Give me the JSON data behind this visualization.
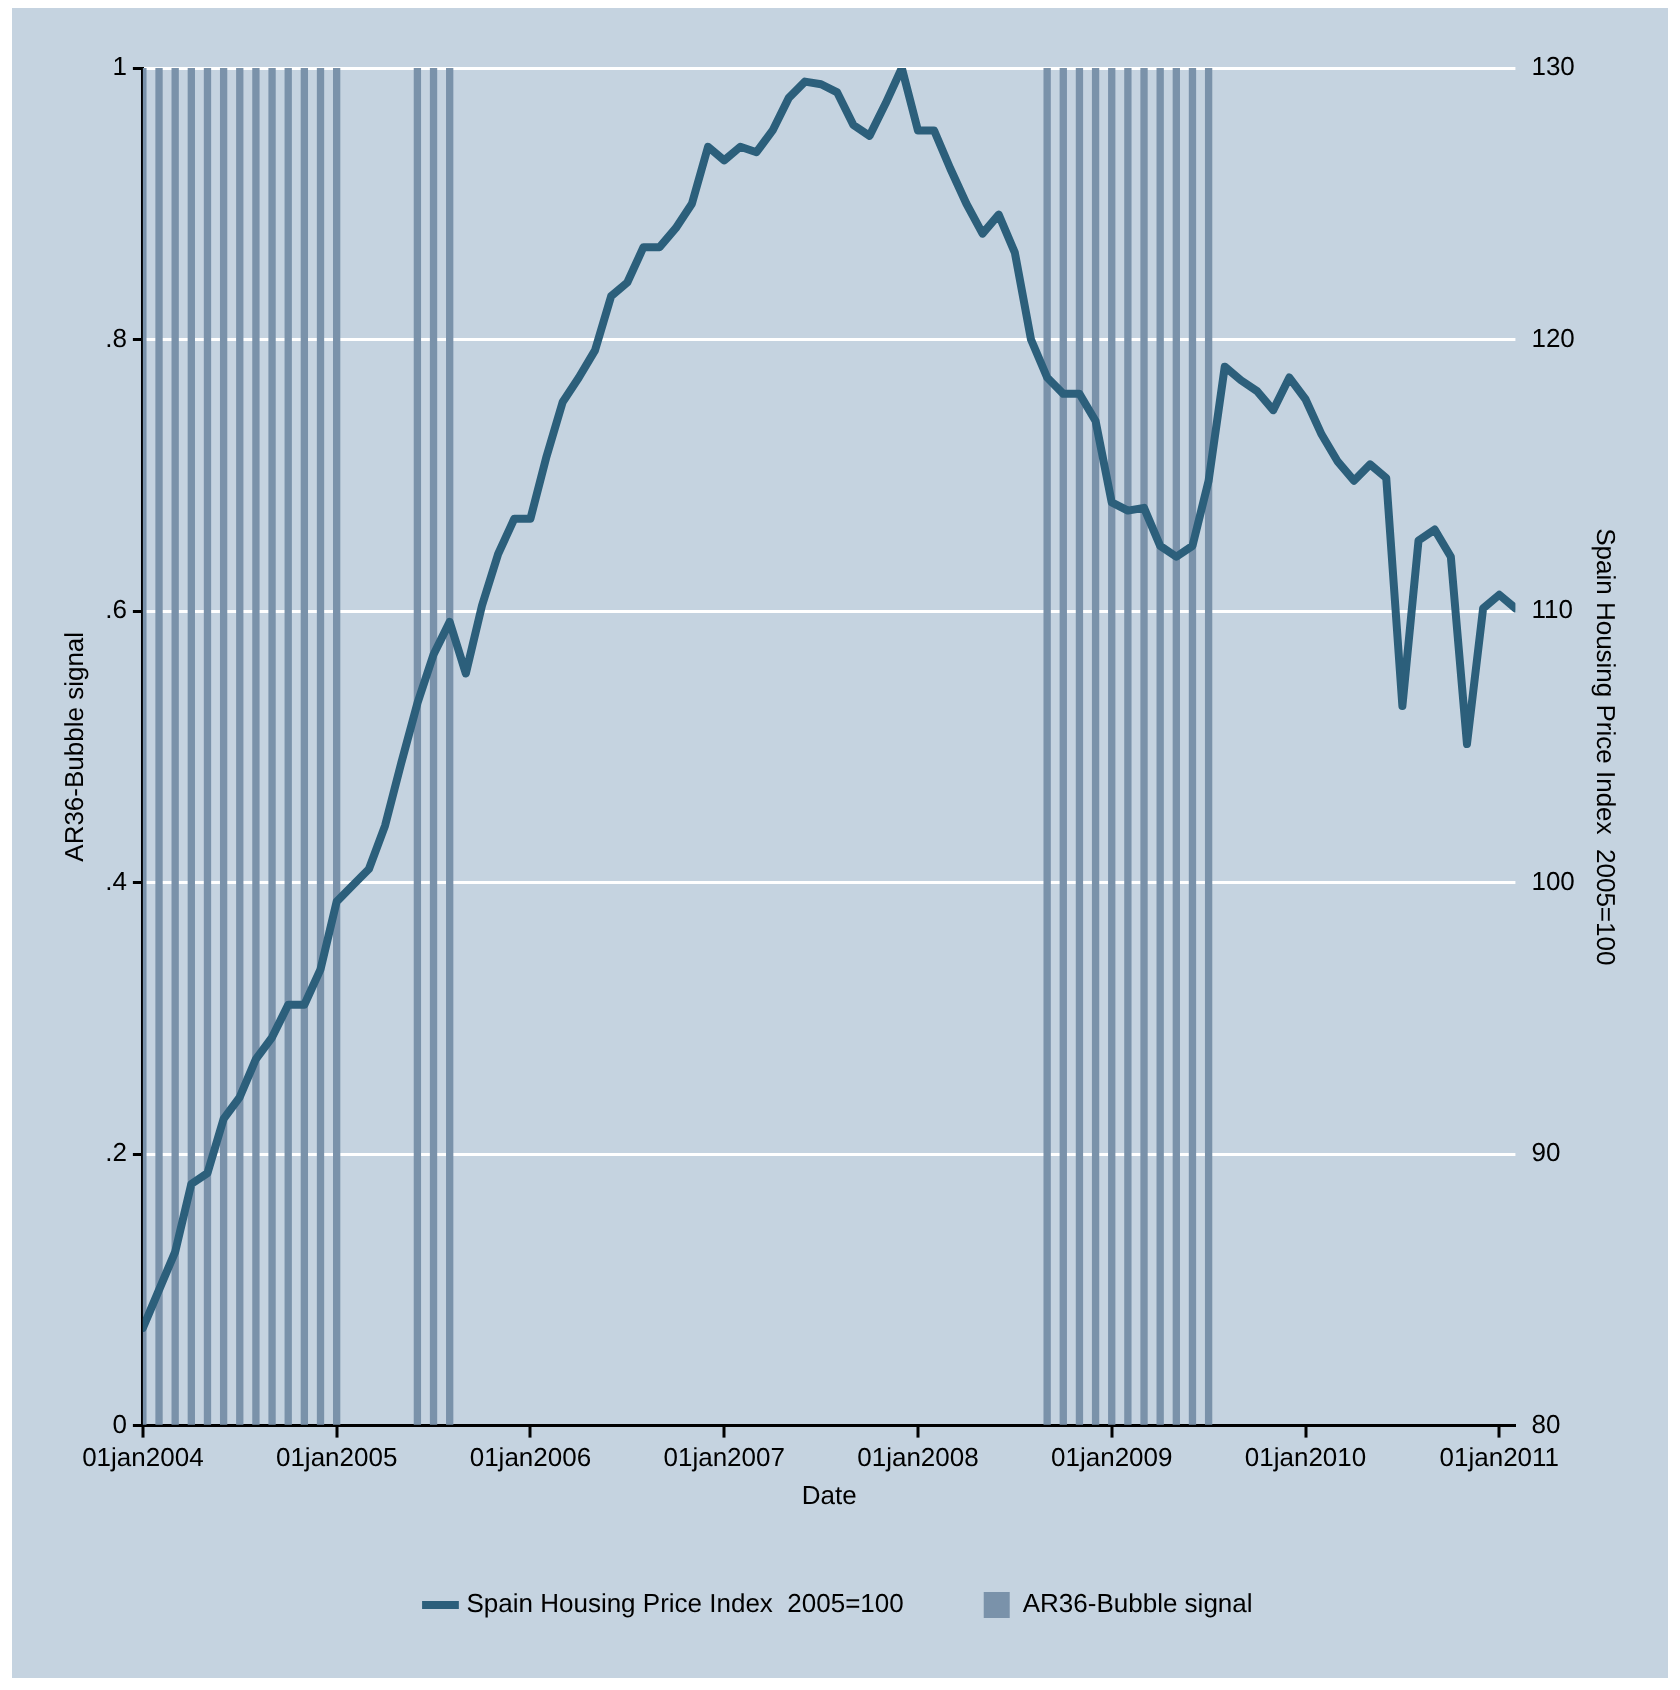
{
  "chart_data": {
    "type": "line",
    "xlabel": "Date",
    "ylabel": "AR36-Bubble signal",
    "y2label": "Spain Housing Price Index  2005=100",
    "xlim": [
      "2004-01",
      "2011-02"
    ],
    "xticks": [
      {
        "value": "2004-01",
        "label": "01jan2004"
      },
      {
        "value": "2005-01",
        "label": "01jan2005"
      },
      {
        "value": "2006-01",
        "label": "01jan2006"
      },
      {
        "value": "2007-01",
        "label": "01jan2007"
      },
      {
        "value": "2008-01",
        "label": "01jan2008"
      },
      {
        "value": "2009-01",
        "label": "01jan2009"
      },
      {
        "value": "2010-01",
        "label": "01jan2010"
      },
      {
        "value": "2011-01",
        "label": "01jan2011"
      }
    ],
    "ylim": [
      0,
      1
    ],
    "yticks": [
      0,
      {
        "value": 0.2,
        "label": ".2"
      },
      {
        "value": 0.4,
        "label": ".4"
      },
      {
        "value": 0.6,
        "label": ".6"
      },
      {
        "value": 0.8,
        "label": ".8"
      },
      1
    ],
    "y2lim": [
      80,
      130
    ],
    "y2ticks": [
      80,
      90,
      100,
      110,
      120,
      130
    ],
    "grid": "y",
    "legend": "bottom",
    "marker": "none",
    "line_style": "solid",
    "series": [
      {
        "name": "Spain Housing Price Index  2005=100",
        "axis": "y2",
        "color": "#2c5f7b",
        "x": [
          "2004-01",
          "2004-02",
          "2004-03",
          "2004-04",
          "2004-05",
          "2004-06",
          "2004-07",
          "2004-08",
          "2004-09",
          "2004-10",
          "2004-11",
          "2004-12",
          "2005-01",
          "2005-02",
          "2005-03",
          "2005-04",
          "2005-05",
          "2005-06",
          "2005-07",
          "2005-08",
          "2005-09",
          "2005-10",
          "2005-11",
          "2005-12",
          "2006-01",
          "2006-02",
          "2006-03",
          "2006-04",
          "2006-05",
          "2006-06",
          "2006-07",
          "2006-08",
          "2006-09",
          "2006-10",
          "2006-11",
          "2006-12",
          "2007-01",
          "2007-02",
          "2007-03",
          "2007-04",
          "2007-05",
          "2007-06",
          "2007-07",
          "2007-08",
          "2007-09",
          "2007-10",
          "2007-11",
          "2007-12",
          "2008-01",
          "2008-02",
          "2008-03",
          "2008-04",
          "2008-05",
          "2008-06",
          "2008-07",
          "2008-08",
          "2008-09",
          "2008-10",
          "2008-11",
          "2008-12",
          "2009-01",
          "2009-02",
          "2009-03",
          "2009-04",
          "2009-05",
          "2009-06",
          "2009-07",
          "2009-08",
          "2009-09",
          "2009-10",
          "2009-11",
          "2009-12",
          "2010-01",
          "2010-02",
          "2010-03",
          "2010-04",
          "2010-05",
          "2010-06",
          "2010-07",
          "2010-08",
          "2010-09",
          "2010-10",
          "2010-11",
          "2010-12",
          "2011-01",
          "2011-02"
        ],
        "values": [
          83.6,
          85.0,
          86.4,
          88.9,
          89.3,
          91.3,
          92.1,
          93.5,
          94.3,
          95.5,
          95.5,
          96.8,
          99.3,
          99.9,
          100.5,
          102.1,
          104.4,
          106.6,
          108.4,
          109.6,
          107.7,
          110.2,
          112.1,
          113.4,
          113.4,
          115.7,
          117.7,
          118.6,
          119.6,
          121.6,
          122.1,
          123.4,
          123.4,
          124.1,
          125.0,
          127.1,
          126.6,
          127.1,
          126.9,
          127.7,
          128.9,
          129.5,
          129.4,
          129.1,
          127.9,
          127.5,
          128.7,
          130.0,
          127.7,
          127.7,
          126.3,
          125.0,
          123.9,
          124.6,
          123.2,
          120.0,
          118.6,
          118.0,
          118.0,
          117.0,
          114.0,
          113.7,
          113.8,
          112.4,
          112.0,
          112.4,
          114.8,
          119.0,
          118.5,
          118.1,
          117.4,
          118.6,
          117.8,
          116.5,
          115.5,
          114.8,
          115.4,
          114.9,
          106.5,
          112.6,
          113.0,
          112.0,
          105.1,
          110.1,
          110.6,
          110.1
        ]
      },
      {
        "name": "AR36-Bubble signal",
        "type": "bar",
        "axis": "y",
        "color": "#7a92aa",
        "x": [
          "2004-01",
          "2004-02",
          "2004-03",
          "2004-04",
          "2004-05",
          "2004-06",
          "2004-07",
          "2004-08",
          "2004-09",
          "2004-10",
          "2004-11",
          "2004-12",
          "2005-01",
          "2005-06",
          "2005-07",
          "2005-08",
          "2008-09",
          "2008-10",
          "2008-11",
          "2008-12",
          "2009-01",
          "2009-02",
          "2009-03",
          "2009-04",
          "2009-05",
          "2009-06",
          "2009-07"
        ],
        "values": [
          1,
          1,
          1,
          1,
          1,
          1,
          1,
          1,
          1,
          1,
          1,
          1,
          1,
          1,
          1,
          1,
          1,
          1,
          1,
          1,
          1,
          1,
          1,
          1,
          1,
          1,
          1
        ]
      }
    ]
  }
}
